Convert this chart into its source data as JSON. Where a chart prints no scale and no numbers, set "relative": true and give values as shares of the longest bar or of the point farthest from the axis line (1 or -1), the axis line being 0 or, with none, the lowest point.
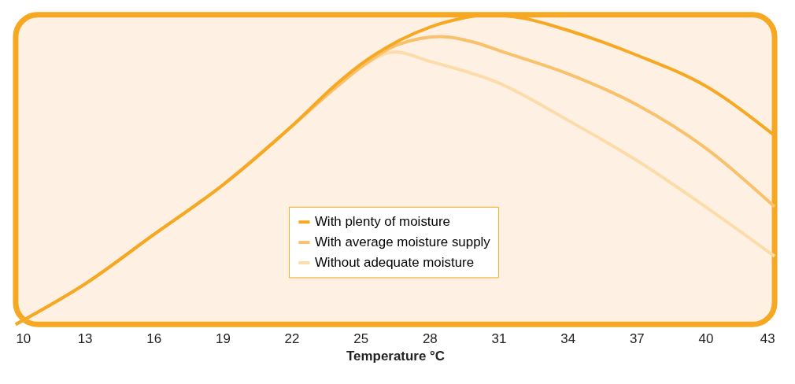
{
  "chart_data": {
    "type": "line",
    "xlabel": "Temperature °C",
    "relative": true,
    "xlim": [
      10,
      43
    ],
    "xticks": [
      10,
      13,
      16,
      19,
      22,
      25,
      28,
      31,
      34,
      37,
      40,
      43
    ],
    "grid": false,
    "legend": "bottom",
    "marker": "none",
    "line_style": "solid",
    "series": [
      {
        "name": "With plenty of moisture",
        "color": "#f7a823",
        "x": [
          10,
          13,
          16,
          19,
          22,
          24,
          25,
          26.5,
          28,
          29.5,
          30.5,
          32,
          34,
          37,
          40,
          43
        ],
        "values": [
          0,
          0.13,
          0.29,
          0.45,
          0.64,
          0.78,
          0.84,
          0.91,
          0.96,
          0.99,
          1.0,
          0.99,
          0.95,
          0.87,
          0.77,
          0.61
        ]
      },
      {
        "name": "With average moisture supply",
        "color": "#f9c16c",
        "x": [
          10,
          13,
          16,
          19,
          22,
          24,
          25,
          26.5,
          28.5,
          30,
          31,
          34,
          37,
          40,
          43
        ],
        "values": [
          0,
          0.13,
          0.29,
          0.45,
          0.64,
          0.77,
          0.83,
          0.9,
          0.93,
          0.91,
          0.885,
          0.81,
          0.71,
          0.57,
          0.38
        ]
      },
      {
        "name": "Without adequate moisture",
        "color": "#fcdcaa",
        "x": [
          10,
          13,
          16,
          19,
          22,
          24,
          25,
          26.5,
          28,
          31,
          34,
          37,
          40,
          43
        ],
        "values": [
          0,
          0.13,
          0.29,
          0.45,
          0.64,
          0.77,
          0.83,
          0.88,
          0.85,
          0.78,
          0.66,
          0.53,
          0.38,
          0.22
        ]
      }
    ]
  }
}
